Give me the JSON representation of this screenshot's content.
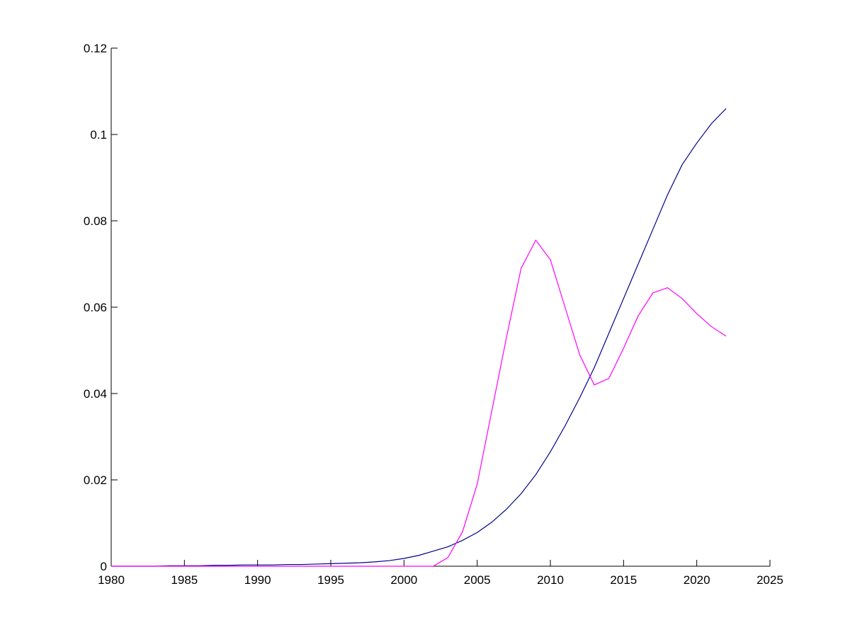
{
  "chart_data": {
    "type": "line",
    "x": [
      1980,
      1981,
      1982,
      1983,
      1984,
      1985,
      1986,
      1987,
      1988,
      1989,
      1990,
      1991,
      1992,
      1993,
      1994,
      1995,
      1996,
      1997,
      1998,
      1999,
      2000,
      2001,
      2002,
      2003,
      2004,
      2005,
      2006,
      2007,
      2008,
      2009,
      2010,
      2011,
      2012,
      2013,
      2014,
      2015,
      2016,
      2017,
      2018,
      2019,
      2020,
      2021,
      2022
    ],
    "series": [
      {
        "color": "#00008b",
        "values": [
          0,
          0,
          0,
          0,
          0.0001,
          0.0001,
          0.0001,
          0.0002,
          0.0002,
          0.0003,
          0.0003,
          0.0003,
          0.0004,
          0.0004,
          0.0005,
          0.0006,
          0.0007,
          0.0008,
          0.001,
          0.0013,
          0.0018,
          0.0025,
          0.0035,
          0.0045,
          0.006,
          0.0078,
          0.0102,
          0.0132,
          0.0168,
          0.0212,
          0.0265,
          0.0325,
          0.039,
          0.046,
          0.054,
          0.062,
          0.07,
          0.078,
          0.086,
          0.093,
          0.098,
          0.1025,
          0.106
        ]
      },
      {
        "color": "#ff00ff",
        "values": [
          0,
          0,
          0,
          0,
          0,
          0,
          0,
          0,
          0,
          0,
          0,
          0,
          0,
          0,
          0,
          0,
          0,
          0,
          0,
          0,
          0,
          0,
          0,
          0.002,
          0.008,
          0.019,
          0.036,
          0.053,
          0.069,
          0.0755,
          0.071,
          0.06,
          0.049,
          0.042,
          0.0435,
          0.0505,
          0.058,
          0.0633,
          0.0645,
          0.062,
          0.0585,
          0.0555,
          0.0533
        ]
      }
    ],
    "xlim": [
      1980,
      2025
    ],
    "xticks": [
      1980,
      1985,
      1990,
      1995,
      2000,
      2005,
      2010,
      2015,
      2020,
      2025
    ],
    "ylim": [
      0,
      0.12
    ],
    "yticks": [
      0,
      0.02,
      0.04,
      0.06,
      0.08,
      0.1,
      0.12
    ]
  }
}
